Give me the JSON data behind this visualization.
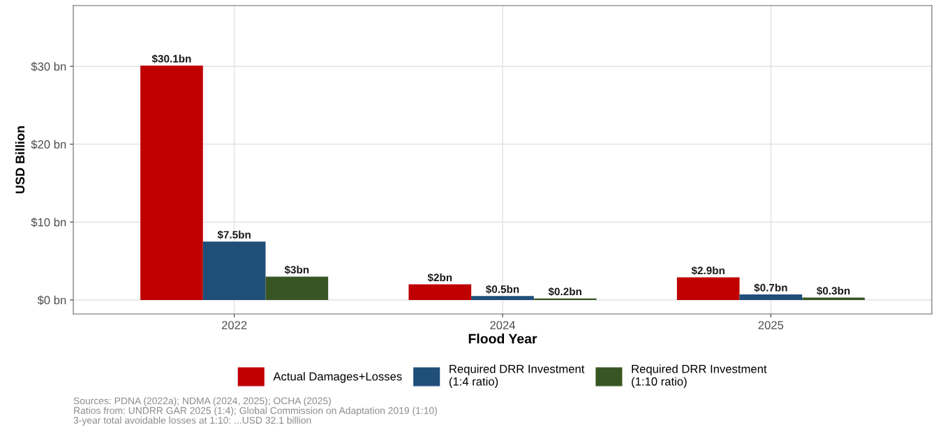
{
  "chart_data": {
    "type": "bar",
    "xlabel": "Flood Year",
    "ylabel": "USD Billion",
    "categories": [
      "2022",
      "2024",
      "2025"
    ],
    "series": [
      {
        "name": "Actual Damages+Losses",
        "color": "#c00000",
        "values": [
          30.1,
          2,
          2.9
        ],
        "value_labels": [
          "$30.1bn",
          "$2bn",
          "$2.9bn"
        ]
      },
      {
        "name": "Required DRR Investment\n(1:4 ratio)",
        "color": "#1f4e79",
        "values": [
          7.5,
          0.5,
          0.7
        ],
        "value_labels": [
          "$7.5bn",
          "$0.5bn",
          "$0.7bn"
        ]
      },
      {
        "name": "Required DRR Investment\n(1:10 ratio)",
        "color": "#375623",
        "values": [
          3,
          0.2,
          0.3
        ],
        "value_labels": [
          "$3bn",
          "$0.2bn",
          "$0.3bn"
        ]
      }
    ],
    "ylim": [
      -1.8,
      37.8
    ],
    "yticks": [
      {
        "value": 0,
        "label": "$0 bn"
      },
      {
        "value": 10,
        "label": "$10 bn"
      },
      {
        "value": 20,
        "label": "$20 bn"
      },
      {
        "value": 30,
        "label": "$30 bn"
      }
    ],
    "grid": true,
    "legend": "bottom",
    "annotations": [
      "Sources: PDNA (2022a); NDMA (2024, 2025); OCHA (2025)\nRatios from: UNDRR GAR 2025 (1:4); Global Commission on Adaptation 2019 (1:10)\n3-year total avoidable losses at 1:10: ...USD 32.1 billion"
    ]
  }
}
